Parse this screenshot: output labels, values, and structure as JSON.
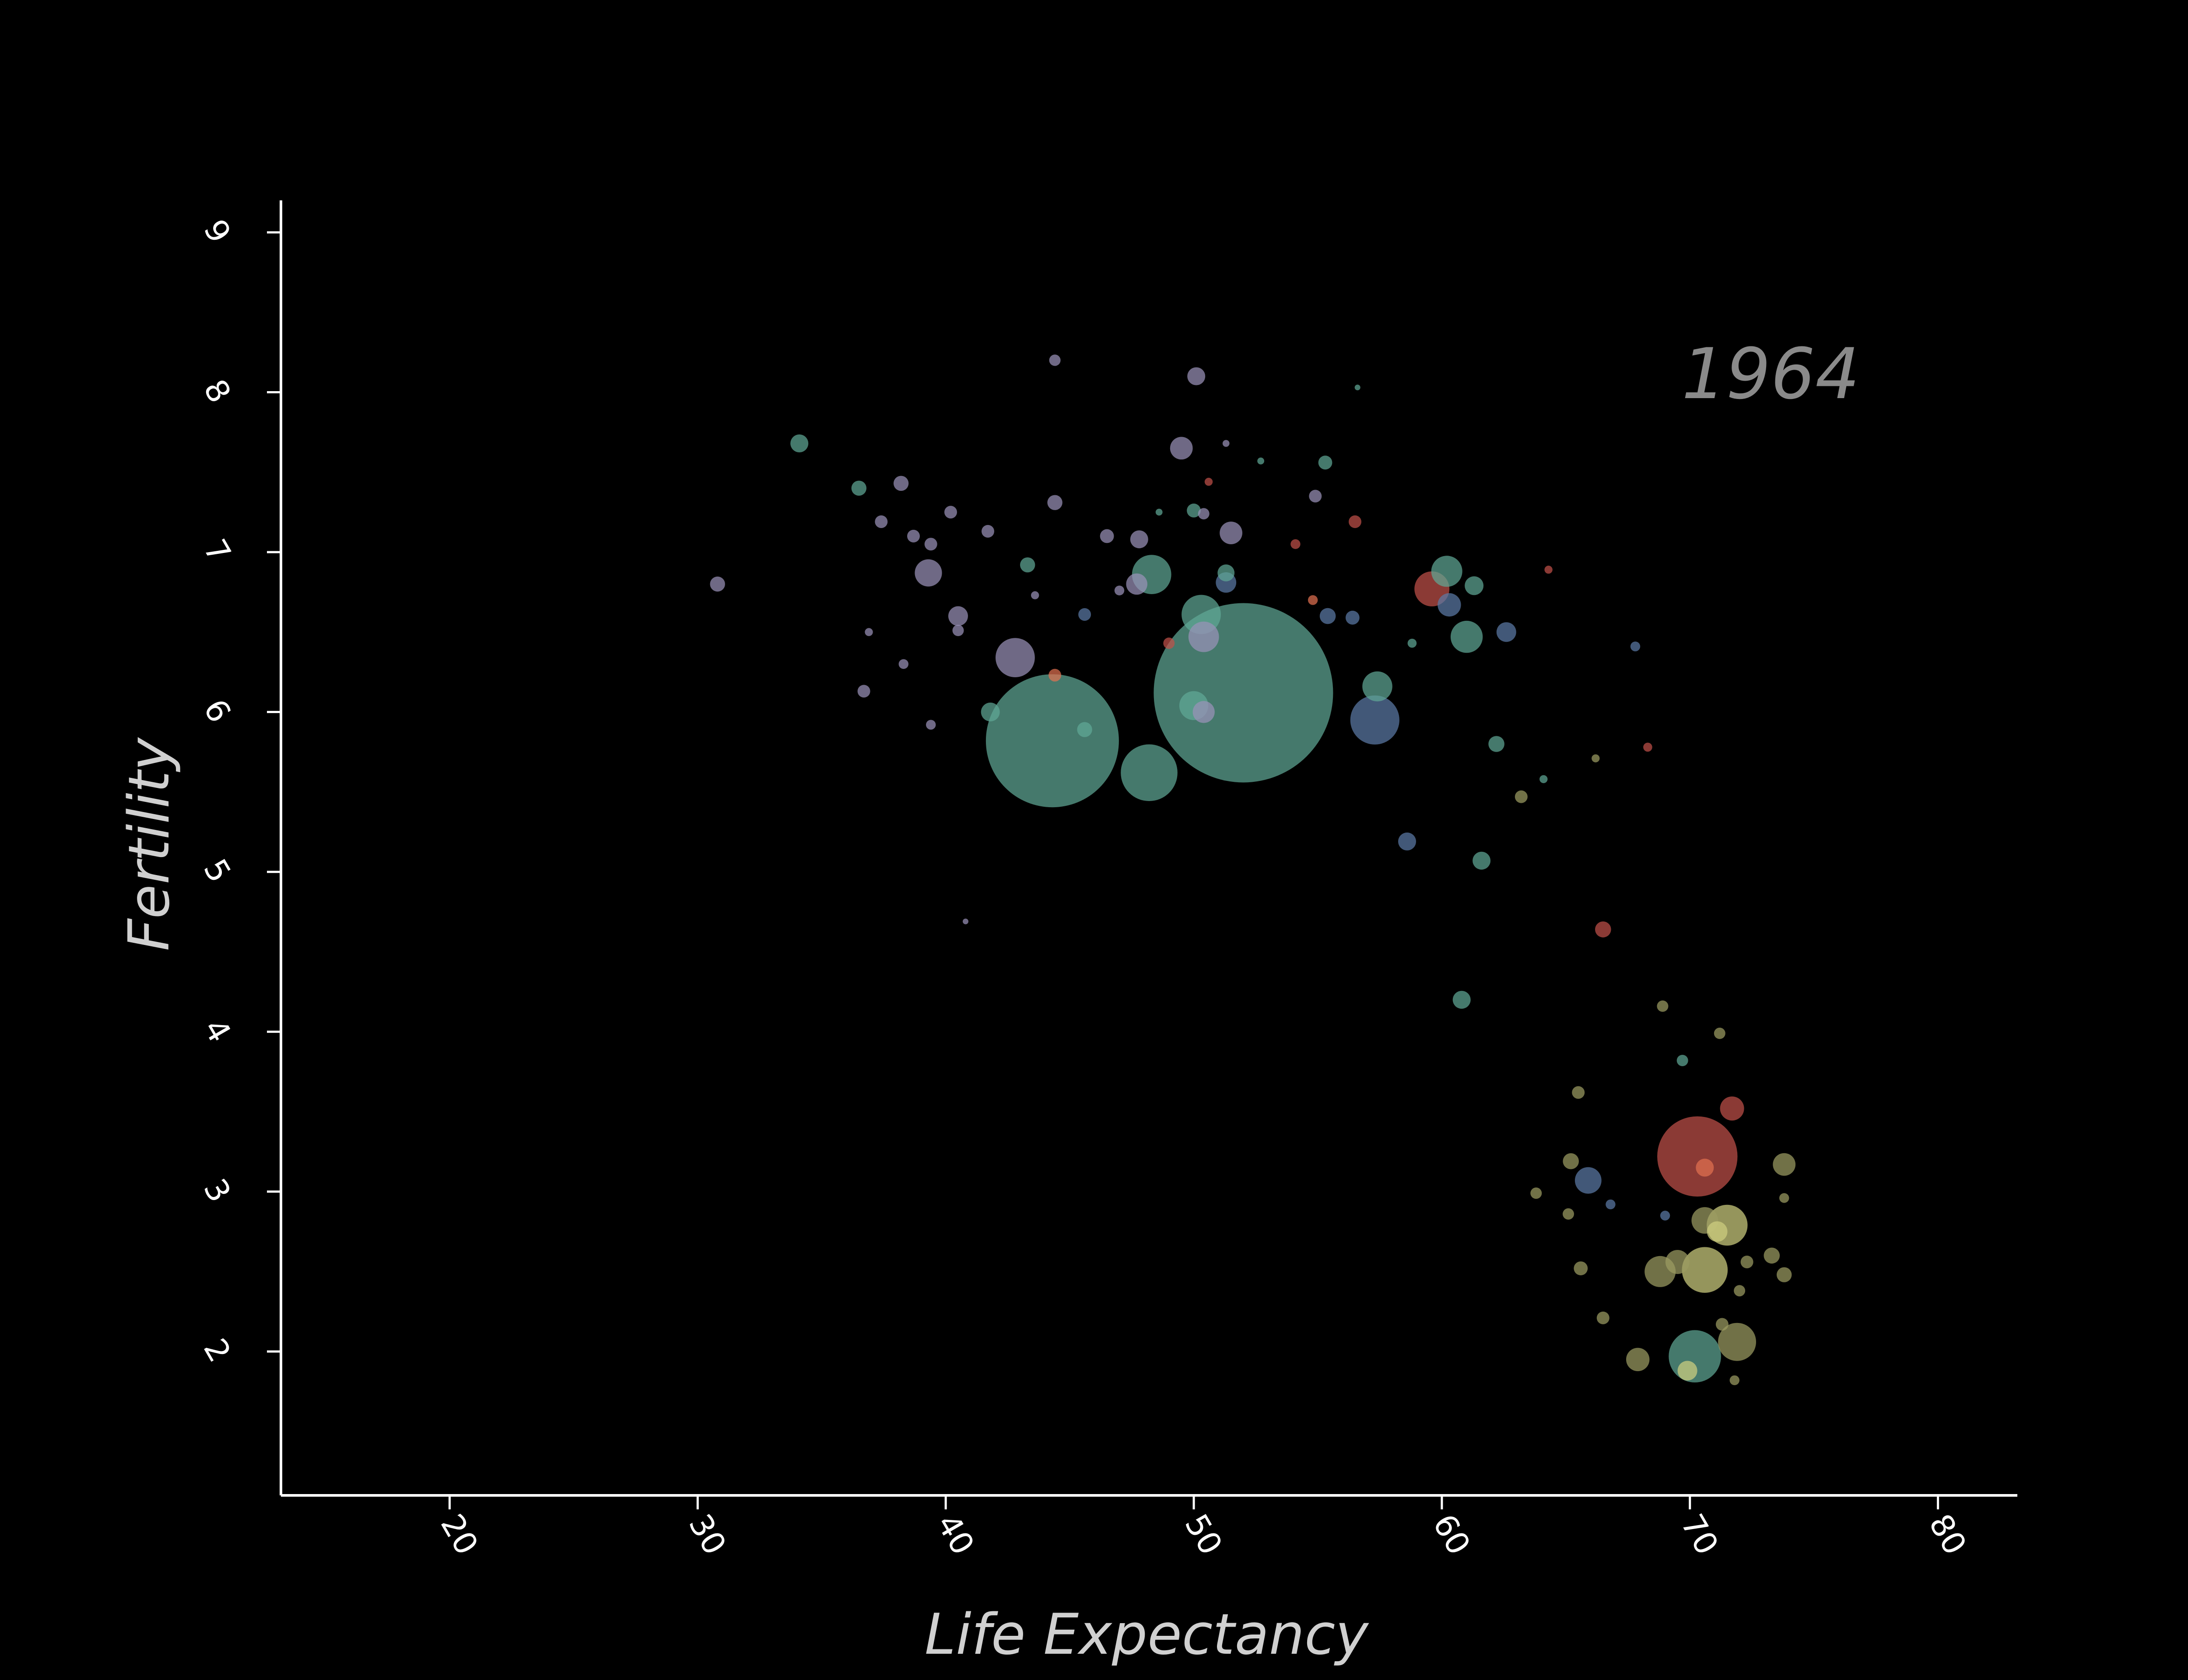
{
  "chart_data": {
    "type": "scatter",
    "title": "",
    "annotation": "1964",
    "xlabel": "Life Expectancy",
    "ylabel": "Fertility",
    "xlim": [
      13.2,
      83.2
    ],
    "ylim": [
      1.1,
      9.2
    ],
    "xticks": [
      "20",
      "30",
      "40",
      "50",
      "60",
      "70",
      "80"
    ],
    "yticks": [
      "2",
      "3",
      "4",
      "5",
      "6",
      "7",
      "8",
      "9"
    ],
    "grid": false,
    "legend": "none",
    "colors": {
      "background": "#000000",
      "axis": "#ffffff",
      "teal": "#5fa896",
      "lavender": "#9a92b8",
      "red": "#c0514a",
      "yellow": "#cfcf7f",
      "olive": "#9c9c62",
      "blue": "#5c7aa6",
      "orange": "#e07050",
      "year": "#8a8a8a"
    },
    "points": [
      {
        "x": 52.0,
        "y": 6.12,
        "size": 100,
        "color": "teal"
      },
      {
        "x": 44.3,
        "y": 5.82,
        "size": 55,
        "color": "teal"
      },
      {
        "x": 70.3,
        "y": 3.22,
        "size": 20,
        "color": "red"
      },
      {
        "x": 57.3,
        "y": 5.95,
        "size": 7.5,
        "color": "blue"
      },
      {
        "x": 48.2,
        "y": 5.62,
        "size": 10,
        "color": "teal"
      },
      {
        "x": 70.2,
        "y": 1.97,
        "size": 8.5,
        "color": "teal"
      },
      {
        "x": 70.6,
        "y": 2.51,
        "size": 6.5,
        "color": "yellow"
      },
      {
        "x": 71.5,
        "y": 2.79,
        "size": 5.2,
        "color": "yellow"
      },
      {
        "x": 71.9,
        "y": 2.06,
        "size": 4.5,
        "color": "olive"
      },
      {
        "x": 68.8,
        "y": 2.5,
        "size": 3.0,
        "color": "olive"
      },
      {
        "x": 59.6,
        "y": 6.77,
        "size": 3.8,
        "color": "red"
      },
      {
        "x": 42.8,
        "y": 6.34,
        "size": 4.8,
        "color": "lavender"
      },
      {
        "x": 48.3,
        "y": 6.86,
        "size": 4.8,
        "color": "teal"
      },
      {
        "x": 50.3,
        "y": 6.61,
        "size": 4.8,
        "color": "teal"
      },
      {
        "x": 61.0,
        "y": 6.47,
        "size": 3.2,
        "color": "teal"
      },
      {
        "x": 60.2,
        "y": 6.88,
        "size": 3.0,
        "color": "teal"
      },
      {
        "x": 57.4,
        "y": 6.16,
        "size": 2.8,
        "color": "teal"
      },
      {
        "x": 50.0,
        "y": 6.04,
        "size": 2.6,
        "color": "teal"
      },
      {
        "x": 50.4,
        "y": 6.47,
        "size": 2.9,
        "color": "lavender"
      },
      {
        "x": 39.3,
        "y": 6.87,
        "size": 2.3,
        "color": "lavender"
      },
      {
        "x": 67.9,
        "y": 1.95,
        "size": 1.7,
        "color": "olive"
      },
      {
        "x": 70.6,
        "y": 2.82,
        "size": 2.2,
        "color": "olive"
      },
      {
        "x": 71.7,
        "y": 3.52,
        "size": 1.8,
        "color": "red"
      },
      {
        "x": 65.9,
        "y": 3.07,
        "size": 2.2,
        "color": "blue"
      },
      {
        "x": 60.3,
        "y": 6.67,
        "size": 1.7,
        "color": "blue"
      },
      {
        "x": 51.5,
        "y": 7.12,
        "size": 1.6,
        "color": "lavender"
      },
      {
        "x": 49.5,
        "y": 7.65,
        "size": 1.6,
        "color": "lavender"
      },
      {
        "x": 50.1,
        "y": 8.1,
        "size": 1.0,
        "color": "lavender"
      },
      {
        "x": 73.8,
        "y": 3.17,
        "size": 1.6,
        "color": "olive"
      },
      {
        "x": 69.5,
        "y": 2.56,
        "size": 1.8,
        "color": "olive"
      },
      {
        "x": 71.1,
        "y": 2.75,
        "size": 1.3,
        "color": "yellow"
      },
      {
        "x": 69.9,
        "y": 1.88,
        "size": 1.2,
        "color": "yellow"
      },
      {
        "x": 40.5,
        "y": 6.6,
        "size": 1.2,
        "color": "lavender"
      },
      {
        "x": 47.7,
        "y": 6.8,
        "size": 1.4,
        "color": "lavender"
      },
      {
        "x": 51.3,
        "y": 6.81,
        "size": 1.3,
        "color": "blue"
      },
      {
        "x": 55.4,
        "y": 6.6,
        "size": 0.8,
        "color": "blue"
      },
      {
        "x": 62.6,
        "y": 6.5,
        "size": 1.2,
        "color": "blue"
      },
      {
        "x": 61.3,
        "y": 6.79,
        "size": 1.1,
        "color": "teal"
      },
      {
        "x": 47.8,
        "y": 7.08,
        "size": 1.0,
        "color": "lavender"
      },
      {
        "x": 50.4,
        "y": 6.0,
        "size": 1.5,
        "color": "lavender"
      },
      {
        "x": 41.8,
        "y": 6.0,
        "size": 1.1,
        "color": "teal"
      },
      {
        "x": 34.1,
        "y": 7.68,
        "size": 1.0,
        "color": "teal"
      },
      {
        "x": 30.8,
        "y": 6.8,
        "size": 0.7,
        "color": "lavender"
      },
      {
        "x": 36.5,
        "y": 7.4,
        "size": 0.7,
        "color": "teal"
      },
      {
        "x": 38.2,
        "y": 7.43,
        "size": 0.7,
        "color": "lavender"
      },
      {
        "x": 44.4,
        "y": 7.31,
        "size": 0.7,
        "color": "lavender"
      },
      {
        "x": 46.5,
        "y": 7.1,
        "size": 0.6,
        "color": "lavender"
      },
      {
        "x": 43.3,
        "y": 6.92,
        "size": 0.7,
        "color": "teal"
      },
      {
        "x": 45.6,
        "y": 6.61,
        "size": 0.5,
        "color": "blue"
      },
      {
        "x": 36.7,
        "y": 6.13,
        "size": 0.5,
        "color": "lavender"
      },
      {
        "x": 44.4,
        "y": 8.2,
        "size": 0.4,
        "color": "lavender"
      },
      {
        "x": 55.3,
        "y": 7.56,
        "size": 0.6,
        "color": "teal"
      },
      {
        "x": 54.9,
        "y": 7.35,
        "size": 0.5,
        "color": "lavender"
      },
      {
        "x": 56.5,
        "y": 7.19,
        "size": 0.5,
        "color": "red"
      },
      {
        "x": 56.4,
        "y": 6.59,
        "size": 0.6,
        "color": "blue"
      },
      {
        "x": 58.6,
        "y": 5.19,
        "size": 1.0,
        "color": "blue"
      },
      {
        "x": 61.6,
        "y": 5.07,
        "size": 1.0,
        "color": "teal"
      },
      {
        "x": 62.2,
        "y": 5.8,
        "size": 0.8,
        "color": "teal"
      },
      {
        "x": 60.8,
        "y": 4.2,
        "size": 1.0,
        "color": "teal"
      },
      {
        "x": 66.5,
        "y": 4.64,
        "size": 0.8,
        "color": "red"
      },
      {
        "x": 63.2,
        "y": 5.47,
        "size": 0.5,
        "color": "olive"
      },
      {
        "x": 65.5,
        "y": 3.62,
        "size": 0.5,
        "color": "olive"
      },
      {
        "x": 68.9,
        "y": 4.16,
        "size": 0.4,
        "color": "olive"
      },
      {
        "x": 71.2,
        "y": 3.99,
        "size": 0.4,
        "color": "olive"
      },
      {
        "x": 69.7,
        "y": 3.82,
        "size": 0.4,
        "color": "teal"
      },
      {
        "x": 65.2,
        "y": 3.19,
        "size": 0.8,
        "color": "olive"
      },
      {
        "x": 63.8,
        "y": 2.99,
        "size": 0.4,
        "color": "olive"
      },
      {
        "x": 65.1,
        "y": 2.86,
        "size": 0.4,
        "color": "olive"
      },
      {
        "x": 65.6,
        "y": 2.52,
        "size": 0.6,
        "color": "olive"
      },
      {
        "x": 66.5,
        "y": 2.21,
        "size": 0.5,
        "color": "olive"
      },
      {
        "x": 73.3,
        "y": 2.6,
        "size": 0.8,
        "color": "olive"
      },
      {
        "x": 73.8,
        "y": 2.48,
        "size": 0.7,
        "color": "olive"
      },
      {
        "x": 72.3,
        "y": 2.56,
        "size": 0.5,
        "color": "olive"
      },
      {
        "x": 71.8,
        "y": 1.82,
        "size": 0.3,
        "color": "olive"
      },
      {
        "x": 73.8,
        "y": 2.96,
        "size": 0.3,
        "color": "olive"
      },
      {
        "x": 70.6,
        "y": 3.15,
        "size": 1.0,
        "color": "orange"
      },
      {
        "x": 49.0,
        "y": 6.43,
        "size": 0.4,
        "color": "red"
      },
      {
        "x": 54.1,
        "y": 7.05,
        "size": 0.3,
        "color": "red"
      },
      {
        "x": 54.8,
        "y": 6.7,
        "size": 0.3,
        "color": "orange"
      },
      {
        "x": 44.4,
        "y": 6.23,
        "size": 0.5,
        "color": "orange"
      },
      {
        "x": 41.7,
        "y": 7.13,
        "size": 0.5,
        "color": "lavender"
      },
      {
        "x": 40.2,
        "y": 7.25,
        "size": 0.5,
        "color": "lavender"
      },
      {
        "x": 38.7,
        "y": 7.1,
        "size": 0.5,
        "color": "lavender"
      },
      {
        "x": 37.4,
        "y": 7.19,
        "size": 0.5,
        "color": "lavender"
      },
      {
        "x": 39.4,
        "y": 7.05,
        "size": 0.5,
        "color": "lavender"
      },
      {
        "x": 39.4,
        "y": 5.92,
        "size": 0.3,
        "color": "lavender"
      },
      {
        "x": 38.3,
        "y": 6.3,
        "size": 0.3,
        "color": "lavender"
      },
      {
        "x": 45.6,
        "y": 5.89,
        "size": 0.7,
        "color": "teal"
      },
      {
        "x": 50.0,
        "y": 7.26,
        "size": 0.6,
        "color": "teal"
      },
      {
        "x": 50.4,
        "y": 7.24,
        "size": 0.4,
        "color": "lavender"
      },
      {
        "x": 51.3,
        "y": 6.87,
        "size": 0.9,
        "color": "teal"
      },
      {
        "x": 66.8,
        "y": 2.92,
        "size": 0.3,
        "color": "blue"
      },
      {
        "x": 69.0,
        "y": 2.85,
        "size": 0.3,
        "color": "blue"
      },
      {
        "x": 72.0,
        "y": 2.38,
        "size": 0.4,
        "color": "olive"
      },
      {
        "x": 71.3,
        "y": 2.17,
        "size": 0.5,
        "color": "olive"
      },
      {
        "x": 67.8,
        "y": 6.41,
        "size": 0.3,
        "color": "blue"
      },
      {
        "x": 64.3,
        "y": 6.89,
        "size": 0.2,
        "color": "red"
      },
      {
        "x": 68.3,
        "y": 5.78,
        "size": 0.25,
        "color": "red"
      },
      {
        "x": 66.2,
        "y": 5.71,
        "size": 0.2,
        "color": "olive"
      },
      {
        "x": 64.1,
        "y": 5.58,
        "size": 0.2,
        "color": "teal"
      },
      {
        "x": 58.8,
        "y": 6.43,
        "size": 0.25,
        "color": "teal"
      },
      {
        "x": 40.8,
        "y": 4.69,
        "size": 0.1,
        "color": "lavender"
      },
      {
        "x": 56.6,
        "y": 8.03,
        "size": 0.1,
        "color": "teal"
      },
      {
        "x": 40.5,
        "y": 6.51,
        "size": 0.4,
        "color": "lavender"
      },
      {
        "x": 36.9,
        "y": 6.5,
        "size": 0.2,
        "color": "lavender"
      },
      {
        "x": 43.6,
        "y": 6.73,
        "size": 0.2,
        "color": "lavender"
      },
      {
        "x": 47.0,
        "y": 6.76,
        "size": 0.3,
        "color": "lavender"
      },
      {
        "x": 48.6,
        "y": 7.25,
        "size": 0.15,
        "color": "teal"
      },
      {
        "x": 52.7,
        "y": 7.57,
        "size": 0.15,
        "color": "teal"
      },
      {
        "x": 51.3,
        "y": 7.68,
        "size": 0.15,
        "color": "lavender"
      },
      {
        "x": 50.6,
        "y": 7.44,
        "size": 0.2,
        "color": "red"
      }
    ]
  }
}
